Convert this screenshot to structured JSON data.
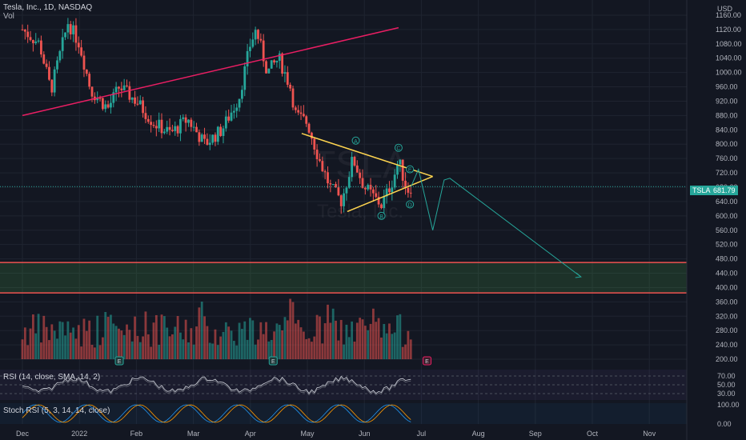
{
  "header": {
    "title": "Tesla, Inc., 1D, NASDAQ",
    "volume_label": "Vol"
  },
  "indicators": {
    "rsi_label": "RSI (14, close, SMA, 14, 2)",
    "stoch_label": "Stoch RSI (5, 3, 14, 14, close)"
  },
  "watermark": {
    "symbol": "TSLA",
    "name": "Tesla, Inc."
  },
  "price_tag": {
    "symbol": "TSLA",
    "value": "681.79"
  },
  "currency": "USD",
  "colors": {
    "up": "#26a69a",
    "down": "#ef5350",
    "triangle": "#ffd54f",
    "trend": "#e91e63",
    "projection": "#26a69a",
    "zone": "#4caf50",
    "tag": "#2196f3"
  },
  "chart_data": {
    "type": "candlestick",
    "x_ticks": [
      "Dec",
      "2022",
      "Feb",
      "Mar",
      "Apr",
      "May",
      "Jun",
      "Jul",
      "Aug",
      "Sep",
      "Oct",
      "Nov"
    ],
    "y_ticks": [
      1160,
      1120,
      1080,
      1040,
      1000,
      960,
      920,
      880,
      840,
      800,
      760,
      720,
      680,
      640,
      600,
      560,
      520,
      480,
      440,
      400,
      360,
      320,
      280,
      240,
      200
    ],
    "ylim": [
      180,
      1180
    ],
    "last_price": 681.79,
    "close_path": [
      {
        "m": 0,
        "v": 1120
      },
      {
        "m": 0.3,
        "v": 1080
      },
      {
        "m": 0.5,
        "v": 950
      },
      {
        "m": 0.8,
        "v": 1140
      },
      {
        "m": 1.0,
        "v": 1080
      },
      {
        "m": 1.2,
        "v": 950
      },
      {
        "m": 1.5,
        "v": 900
      },
      {
        "m": 1.7,
        "v": 960
      },
      {
        "m": 2.0,
        "v": 920
      },
      {
        "m": 2.3,
        "v": 860
      },
      {
        "m": 2.6,
        "v": 830
      },
      {
        "m": 2.9,
        "v": 870
      },
      {
        "m": 3.2,
        "v": 800
      },
      {
        "m": 3.5,
        "v": 840
      },
      {
        "m": 3.8,
        "v": 930
      },
      {
        "m": 4.0,
        "v": 1080
      },
      {
        "m": 4.1,
        "v": 1120
      },
      {
        "m": 4.3,
        "v": 1000
      },
      {
        "m": 4.5,
        "v": 1040
      },
      {
        "m": 4.7,
        "v": 960
      },
      {
        "m": 4.8,
        "v": 880
      },
      {
        "m": 5.0,
        "v": 860
      },
      {
        "m": 5.2,
        "v": 760
      },
      {
        "m": 5.4,
        "v": 680
      },
      {
        "m": 5.6,
        "v": 640
      },
      {
        "m": 5.8,
        "v": 760
      },
      {
        "m": 6.0,
        "v": 680
      },
      {
        "m": 6.3,
        "v": 630
      },
      {
        "m": 6.5,
        "v": 700
      },
      {
        "m": 6.6,
        "v": 755
      },
      {
        "m": 6.75,
        "v": 670
      },
      {
        "m": 6.82,
        "v": 681.79
      }
    ],
    "volume_range": [
      200,
      480
    ],
    "trendline": {
      "from": {
        "m": 0,
        "v": 880
      },
      "to": {
        "m": 6.6,
        "v": 1125
      }
    },
    "triangle": {
      "upper": [
        {
          "m": 4.9,
          "v": 830
        },
        {
          "m": 7.2,
          "v": 710
        }
      ],
      "lower": [
        {
          "m": 5.7,
          "v": 612
        },
        {
          "m": 7.2,
          "v": 710
        }
      ]
    },
    "wave_labels": [
      {
        "label": "A",
        "m": 5.85,
        "v": 810
      },
      {
        "label": "B",
        "m": 6.3,
        "v": 600
      },
      {
        "label": "C",
        "m": 6.6,
        "v": 790
      },
      {
        "label": "D",
        "m": 6.8,
        "v": 632
      },
      {
        "label": "E",
        "m": 6.8,
        "v": 730
      }
    ],
    "projection": [
      {
        "m": 6.82,
        "v": 681.79
      },
      {
        "m": 6.95,
        "v": 730
      },
      {
        "m": 7.2,
        "v": 560
      },
      {
        "m": 7.4,
        "v": 700
      },
      {
        "m": 7.5,
        "v": 705
      },
      {
        "m": 9.8,
        "v": 430
      }
    ],
    "support_zone": [
      385,
      470
    ],
    "earnings_markers": [
      1.7,
      4.4,
      7.1
    ]
  }
}
